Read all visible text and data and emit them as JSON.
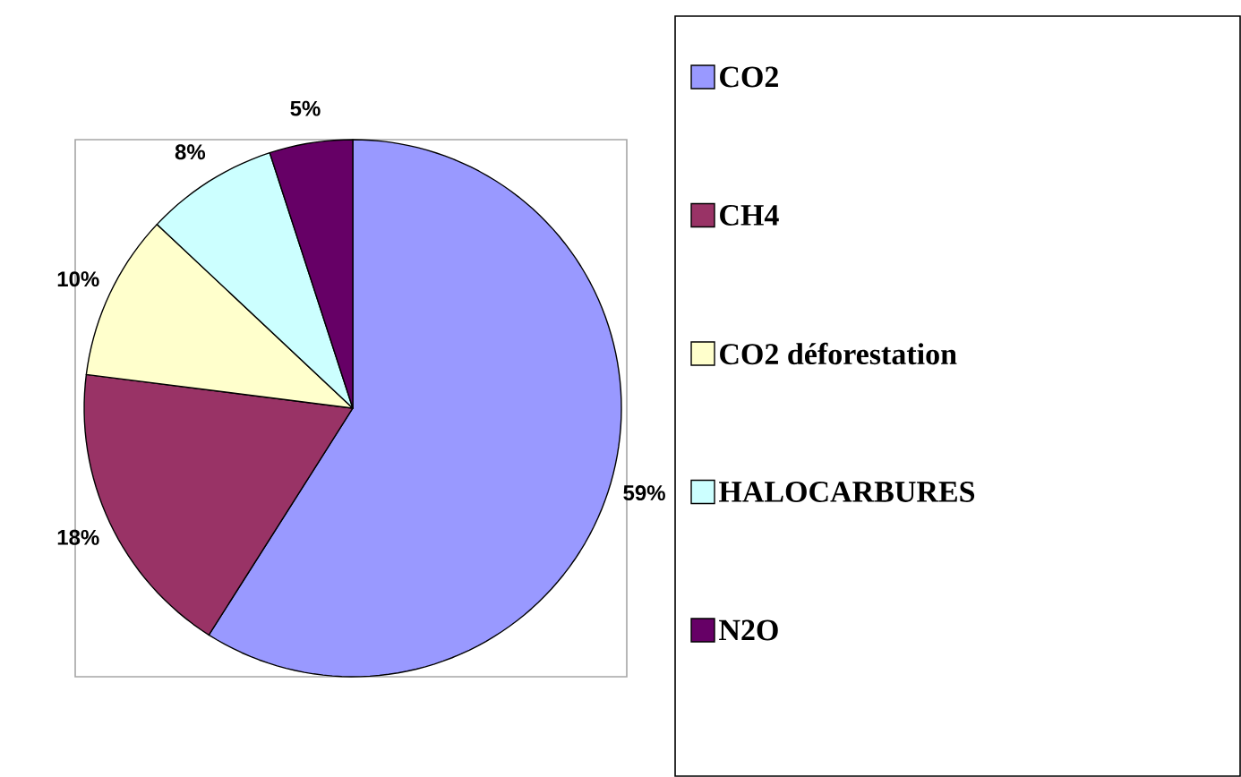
{
  "chart_data": {
    "type": "pie",
    "categories": [
      "CO2",
      "CH4",
      "CO2 déforestation",
      "HALOCARBURES",
      "N2O"
    ],
    "values": [
      59,
      18,
      10,
      8,
      5
    ],
    "colors": [
      "#9999ff",
      "#993366",
      "#ffffcc",
      "#ccffff",
      "#660066"
    ],
    "value_labels": [
      "59%",
      "18%",
      "10%",
      "8%",
      "5%"
    ],
    "legend": "right"
  }
}
